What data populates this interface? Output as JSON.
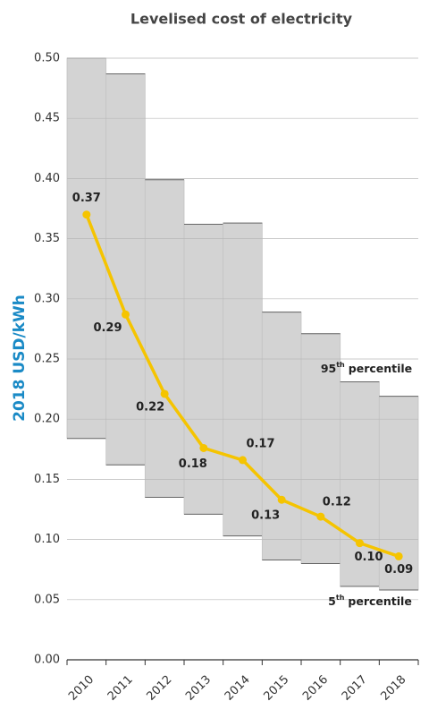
{
  "chart_data": {
    "type": "line",
    "title": "Levelised cost of electricity",
    "y_label": "2018 USD/kWh",
    "categories": [
      "2010",
      "2011",
      "2012",
      "2013",
      "2014",
      "2015",
      "2016",
      "2017",
      "2018"
    ],
    "values": [
      0.37,
      0.287,
      0.221,
      0.176,
      0.166,
      0.133,
      0.119,
      0.097,
      0.086
    ],
    "value_labels": [
      "0.37",
      "0.29",
      "0.22",
      "0.18",
      "0.17",
      "0.13",
      "0.12",
      "0.10",
      "0.09"
    ],
    "color": "#f5c400",
    "band": {
      "upper": [
        0.5,
        0.487,
        0.399,
        0.362,
        0.363,
        0.289,
        0.271,
        0.231,
        0.219
      ],
      "lower": [
        0.184,
        0.162,
        0.135,
        0.121,
        0.103,
        0.083,
        0.08,
        0.061,
        0.058
      ],
      "color": "#d3d3d3"
    },
    "upper_note": {
      "base": "95",
      "sup": "th",
      "text": "percentile"
    },
    "lower_note": {
      "base": "5",
      "sup": "th",
      "text": "percentile"
    },
    "ylim": [
      0,
      0.5
    ],
    "yticks": [
      {
        "value": 0,
        "label": "0.00"
      },
      0.05,
      {
        "value": 0.1,
        "label": "0.10"
      },
      0.15,
      {
        "value": 0.2,
        "label": "0.20"
      },
      0.25,
      {
        "value": 0.3,
        "label": "0.30"
      },
      0.35,
      {
        "value": 0.4,
        "label": "0.40"
      },
      0.45,
      {
        "value": 0.5,
        "label": "0.50"
      }
    ],
    "grid": true
  }
}
